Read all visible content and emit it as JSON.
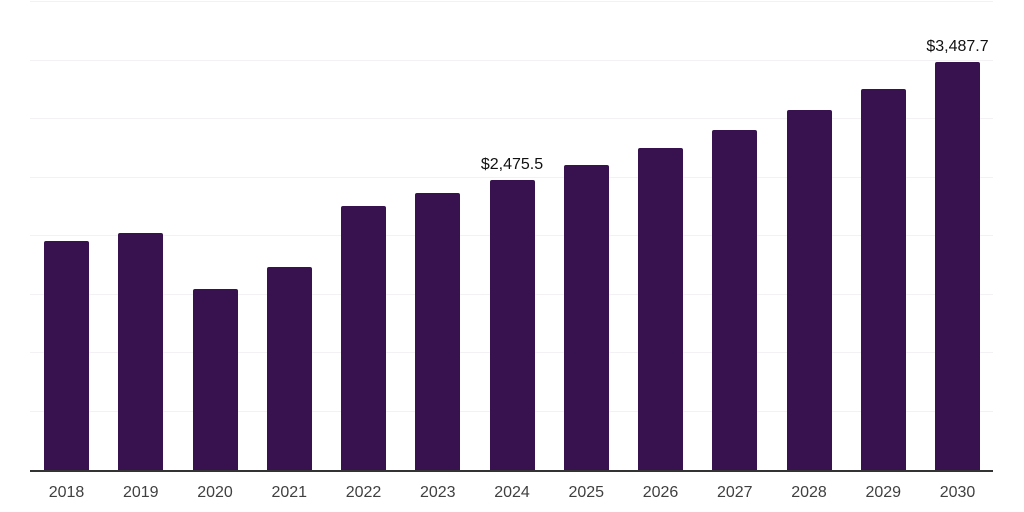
{
  "chart_data": {
    "type": "bar",
    "title": "",
    "xlabel": "",
    "ylabel": "",
    "categories": [
      "2018",
      "2019",
      "2020",
      "2021",
      "2022",
      "2023",
      "2024",
      "2025",
      "2026",
      "2027",
      "2028",
      "2029",
      "2030"
    ],
    "values": [
      1960,
      2025,
      1550,
      1733,
      2260,
      2365,
      2475.5,
      2605,
      2750,
      2905,
      3080,
      3260,
      3487.7
    ],
    "data_labels": [
      null,
      null,
      null,
      null,
      null,
      null,
      "$2,475.5",
      null,
      null,
      null,
      null,
      null,
      "$3,487.7"
    ],
    "ylim": [
      0,
      4000
    ],
    "grid_step": 500,
    "grid": true,
    "legend": false,
    "colors": {
      "bar": "#38124F",
      "axis_line": "#333333",
      "gridline": "#f3f1f4",
      "tick_label": "#404040",
      "data_label": "#111111",
      "background": "#ffffff"
    }
  }
}
